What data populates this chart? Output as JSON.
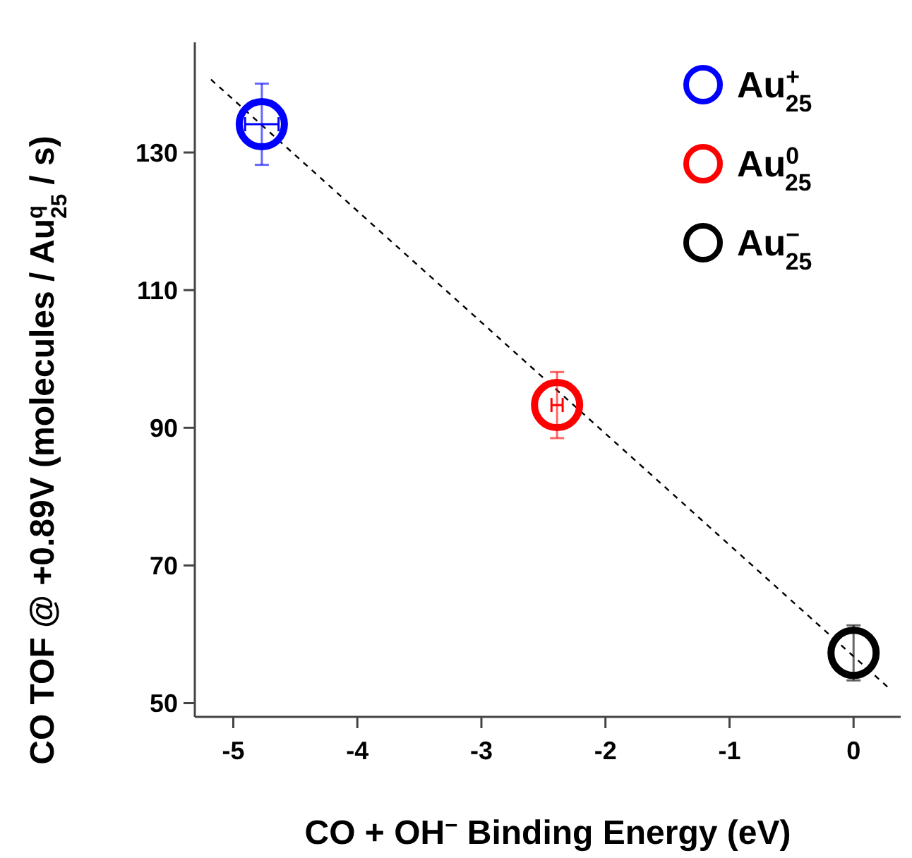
{
  "chart_data": {
    "type": "scatter",
    "xlabel": "CO + OH$^{−}$ Binding Energy (eV)",
    "ylabel": "CO TOF @ +0.89V (molecules / Au$^{q}$$_{25}$ / s)",
    "xlim": [
      -5.31,
      0.38
    ],
    "xticks": [
      -5,
      -4,
      -3,
      -2,
      -1,
      0
    ],
    "ylim": [
      48,
      146
    ],
    "yticks": [
      50,
      70,
      90,
      110,
      130
    ],
    "grid": false,
    "legend": "top right",
    "marker": "circle",
    "series": [
      {
        "name": "Au$^{+}$$_{25}$",
        "color": "#0000ff",
        "x": [
          -4.77
        ],
        "values": [
          134.1
        ],
        "errors": [
          5.9
        ],
        "xerrors": [
          0.135
        ]
      },
      {
        "name": "Au$^{0}$$_{25}$",
        "color": "#ff0000",
        "x": [
          -2.39
        ],
        "values": [
          93.3
        ],
        "errors": [
          4.8
        ],
        "xerrors": [
          0.045
        ]
      },
      {
        "name": "Au$^{−}$$_{25}$",
        "color": "#000000",
        "x": [
          0
        ],
        "values": [
          57.3
        ],
        "errors": [
          4
        ],
        "xerrors": [
          null
        ]
      },
      {
        "type": "line",
        "color": "#000000",
        "line_style": "dashed",
        "marker": "none",
        "x": [
          -5.18,
          0.29
        ],
        "values": [
          140.6,
          52.1
        ]
      }
    ]
  }
}
